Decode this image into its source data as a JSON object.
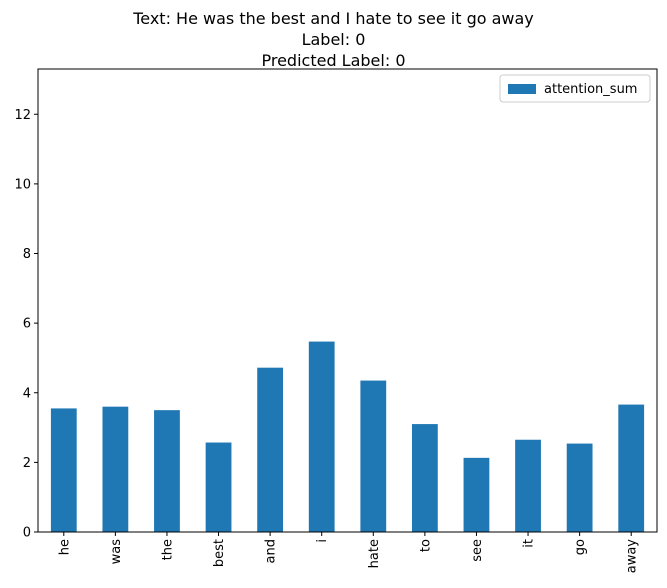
{
  "chart_data": {
    "type": "bar",
    "title_lines": [
      "Text: He was the best and I hate to see it go away",
      "Label: 0",
      "Predicted Label: 0"
    ],
    "categories": [
      "he",
      "was",
      "the",
      "best",
      "and",
      "i",
      "hate",
      "to",
      "see",
      "it",
      "go",
      "away"
    ],
    "series": [
      {
        "name": "attention_sum",
        "color": "#1f77b4",
        "values": [
          3.55,
          3.6,
          3.5,
          2.57,
          4.72,
          5.47,
          4.35,
          3.1,
          2.13,
          2.65,
          2.54,
          3.66
        ]
      }
    ],
    "ylim": [
      0,
      13.3
    ],
    "yticks": [
      0,
      2,
      4,
      6,
      8,
      10,
      12
    ],
    "xlabel": "",
    "ylabel": "",
    "legend": "top-right",
    "grid": false
  }
}
